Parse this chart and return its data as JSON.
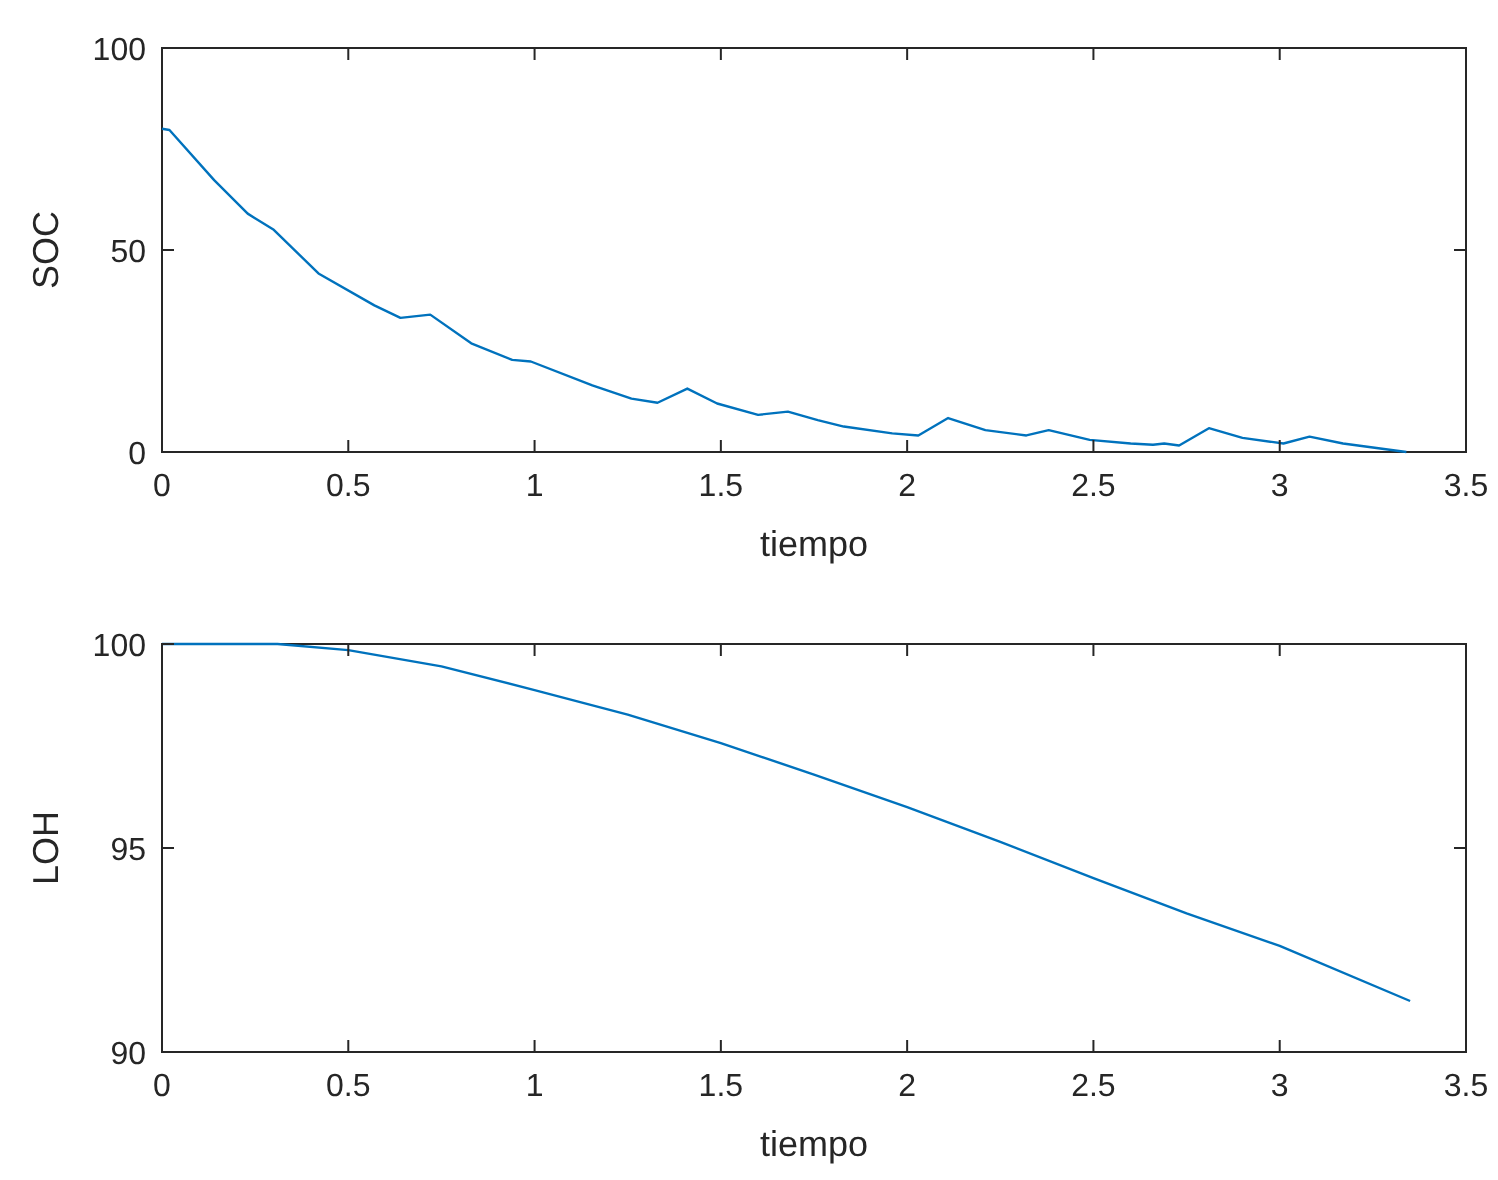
{
  "chart_data": [
    {
      "type": "line",
      "xlabel": "tiempo",
      "ylabel": "SOC",
      "xlim": [
        0,
        3.5
      ],
      "ylim": [
        0,
        100
      ],
      "xticks": [
        0,
        0.5,
        1,
        1.5,
        2,
        2.5,
        3,
        3.5
      ],
      "yticks": [
        0,
        50,
        100
      ],
      "grid": false,
      "series": [
        {
          "color": "#0072bd",
          "x": [
            0,
            0.02,
            0.14,
            0.23,
            0.3,
            0.42,
            0.57,
            0.64,
            0.72,
            0.83,
            0.94,
            0.99,
            1.155,
            1.26,
            1.33,
            1.41,
            1.49,
            1.6,
            1.68,
            1.76,
            1.83,
            1.96,
            2.03,
            2.11,
            2.21,
            2.32,
            2.38,
            2.49,
            2.6,
            2.66,
            2.69,
            2.73,
            2.81,
            2.9,
            3.01,
            3.08,
            3.17,
            3.26,
            3.34
          ],
          "values": [
            80,
            79.7,
            67.3,
            59,
            55,
            44.2,
            36.3,
            33.2,
            34,
            26.9,
            22.8,
            22.4,
            16.5,
            13.2,
            12.2,
            15.7,
            12,
            9.2,
            10,
            7.9,
            6.3,
            4.6,
            4.1,
            8.4,
            5.4,
            4.1,
            5.4,
            3,
            2.1,
            1.8,
            2.1,
            1.6,
            5.9,
            3.5,
            2.1,
            3.8,
            2.1,
            1,
            0
          ]
        }
      ]
    },
    {
      "type": "line",
      "xlabel": "tiempo",
      "ylabel": "LOH",
      "xlim": [
        0,
        3.5
      ],
      "ylim": [
        90,
        100
      ],
      "xticks": [
        0,
        0.5,
        1,
        1.5,
        2,
        2.5,
        3,
        3.5
      ],
      "yticks": [
        90,
        95,
        100
      ],
      "grid": false,
      "series": [
        {
          "color": "#0072bd",
          "x": [
            0,
            0.25,
            0.31,
            0.5,
            0.75,
            1,
            1.25,
            1.5,
            1.75,
            2,
            2.25,
            2.5,
            2.75,
            3,
            3.35
          ],
          "values": [
            100,
            100,
            100,
            99.85,
            99.45,
            98.87,
            98.27,
            97.57,
            96.8,
            96,
            95.15,
            94.26,
            93.4,
            92.6,
            91.25
          ]
        }
      ]
    }
  ]
}
